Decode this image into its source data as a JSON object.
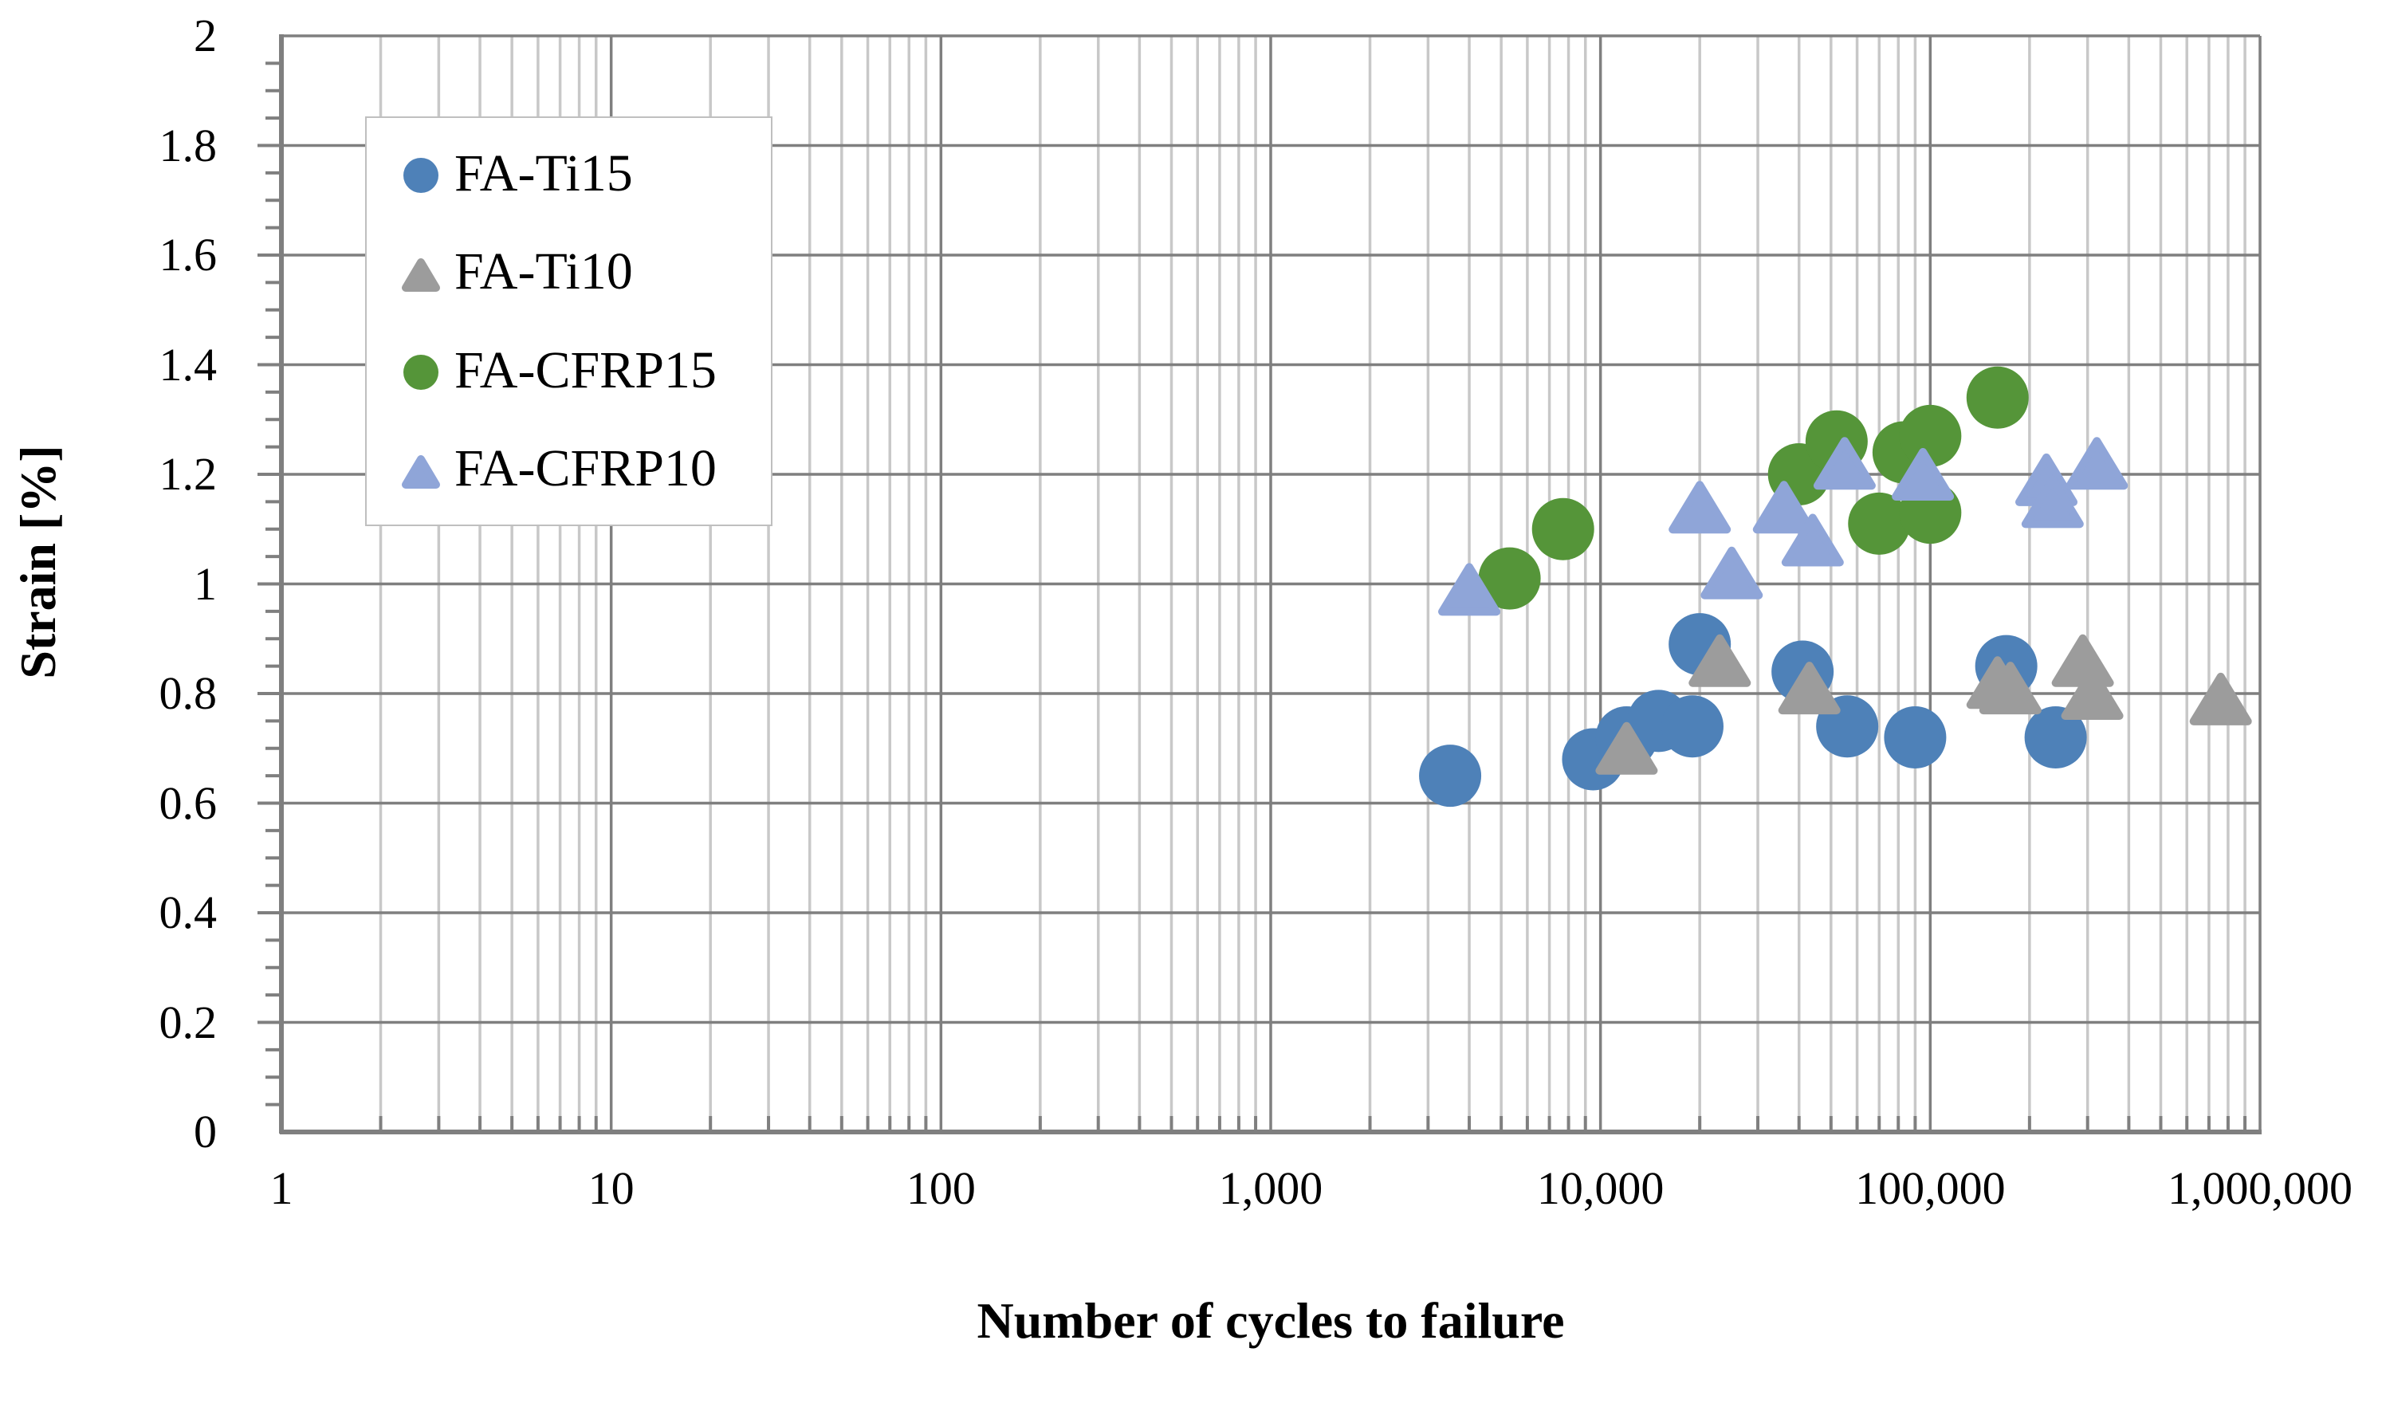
{
  "chart_data": {
    "type": "scatter",
    "title": "",
    "xlabel": "Number of cycles to failure",
    "ylabel": "Strain [%]",
    "x_scale": "log",
    "x_range": [
      1,
      1000000
    ],
    "x_ticks": [
      "1",
      "10",
      "100",
      "1,000",
      "10,000",
      "100,000",
      "1,000,000"
    ],
    "y_range": [
      0,
      2
    ],
    "y_tick_labels": [
      "0",
      "0.2",
      "0.4",
      "0.6",
      "0.8",
      "1",
      "1.2",
      "1.4",
      "1.6",
      "1.8",
      "2"
    ],
    "y_minor_step": 0.05,
    "grid": {
      "major_color": "#7F7F7F",
      "minor_color": "#C8C8C8",
      "axis_color": "#7F7F7F",
      "legend_border_color": "#BFBFBF",
      "show_vertical_minor": true,
      "legend_position": "top-left"
    },
    "series": [
      {
        "name": "FA-Ti15",
        "marker": "circle",
        "color": "#4E81B8",
        "points": [
          [
            3500,
            0.65
          ],
          [
            9500,
            0.68
          ],
          [
            12000,
            0.72
          ],
          [
            15000,
            0.75
          ],
          [
            19000,
            0.74
          ],
          [
            20000,
            0.89
          ],
          [
            41000,
            0.84
          ],
          [
            56000,
            0.74
          ],
          [
            90000,
            0.72
          ],
          [
            170000,
            0.85
          ],
          [
            240000,
            0.72
          ]
        ]
      },
      {
        "name": "FA-Ti10",
        "marker": "triangle",
        "color": "#9C9C9C",
        "points": [
          [
            12000,
            0.7
          ],
          [
            23000,
            0.86
          ],
          [
            43000,
            0.81
          ],
          [
            160000,
            0.82
          ],
          [
            175000,
            0.81
          ],
          [
            290000,
            0.86
          ],
          [
            310000,
            0.8
          ],
          [
            760000,
            0.79
          ]
        ]
      },
      {
        "name": "FA-CFRP15",
        "marker": "circle",
        "color": "#559539",
        "points": [
          [
            5300,
            1.01
          ],
          [
            7700,
            1.1
          ],
          [
            40000,
            1.2
          ],
          [
            52000,
            1.26
          ],
          [
            70000,
            1.11
          ],
          [
            83000,
            1.24
          ],
          [
            100000,
            1.13
          ],
          [
            100000,
            1.27
          ],
          [
            160000,
            1.34
          ]
        ]
      },
      {
        "name": "FA-CFRP10",
        "marker": "triangle",
        "color": "#8FA5D8",
        "points": [
          [
            4000,
            0.99
          ],
          [
            20000,
            1.14
          ],
          [
            25000,
            1.02
          ],
          [
            36000,
            1.14
          ],
          [
            44000,
            1.08
          ],
          [
            55000,
            1.22
          ],
          [
            95000,
            1.2
          ],
          [
            225000,
            1.19
          ],
          [
            235000,
            1.15
          ],
          [
            320000,
            1.22
          ]
        ]
      }
    ]
  }
}
